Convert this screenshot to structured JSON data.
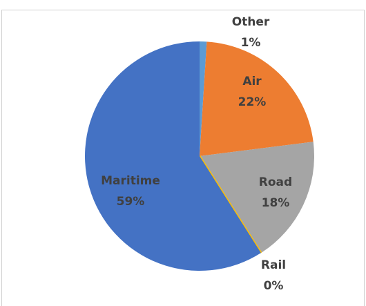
{
  "chart_data": {
    "type": "pie",
    "categories": [
      "Other",
      "Air",
      "Road",
      "Rail",
      "Maritime"
    ],
    "values": [
      1,
      22,
      18,
      0,
      59
    ],
    "value_labels": [
      "1%",
      "22%",
      "18%",
      "0%",
      "59%"
    ],
    "colors": [
      "#5b9bd5",
      "#ed7d31",
      "#a5a5a5",
      "#ffc000",
      "#4472c4"
    ]
  }
}
